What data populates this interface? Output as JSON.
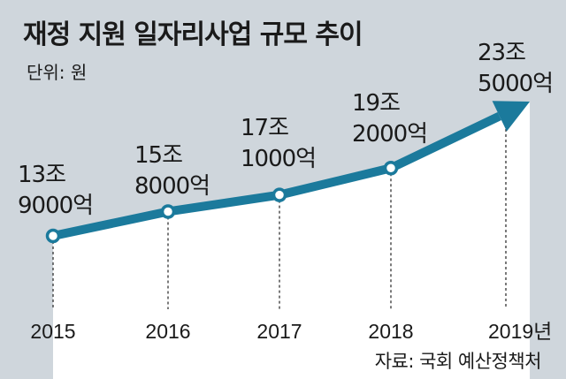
{
  "title": "재정 지원 일자리사업 규모 추이",
  "unit_label": "단위: 원",
  "source": "자료: 국회 예산정책처",
  "colors": {
    "background": "#cfd6dc",
    "area_fill": "#ffffff",
    "line": "#1b7a9c",
    "marker_fill": "#ffffff"
  },
  "chart_data": {
    "type": "line",
    "title": "재정 지원 일자리사업 규모 추이",
    "unit": "원",
    "categories": [
      "2015",
      "2016",
      "2017",
      "2018",
      "2019년"
    ],
    "values": [
      13.9,
      15.8,
      17.1,
      19.2,
      23.5
    ],
    "value_labels": [
      [
        "13조",
        "9000억"
      ],
      [
        "15조",
        "8000억"
      ],
      [
        "17조",
        "1000억"
      ],
      [
        "19조",
        "2000억"
      ],
      [
        "23조",
        "5000억"
      ]
    ],
    "markers": [
      true,
      true,
      true,
      true,
      false
    ],
    "arrow_end": true,
    "grid": false,
    "legend": "none"
  }
}
